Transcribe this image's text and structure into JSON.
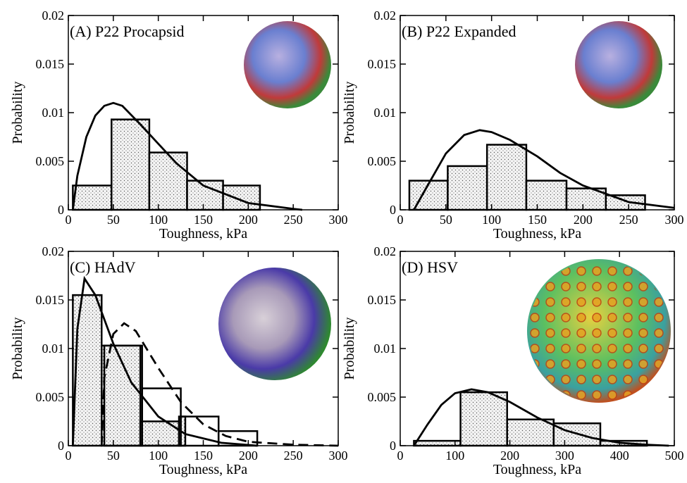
{
  "chart_data": [
    {
      "type": "histogram",
      "title": "(A) P22 Procapsid",
      "xlabel": "Toughness, kPa",
      "ylabel": "Probability",
      "xlim": [
        0,
        300
      ],
      "ylim": [
        0,
        0.02
      ],
      "xticks": [
        0,
        50,
        100,
        150,
        200,
        250,
        300
      ],
      "yticks": [
        0,
        0.005,
        0.01,
        0.015,
        0.02
      ],
      "histograms": [
        {
          "fill": "dotted",
          "bins": [
            5,
            48,
            90,
            132,
            172,
            213
          ],
          "counts": [
            0.0025,
            0.0093,
            0.0059,
            0.003,
            0.0025
          ]
        }
      ],
      "curves": [
        {
          "dashed": false,
          "x": [
            5,
            10,
            20,
            30,
            40,
            50,
            60,
            80,
            100,
            120,
            150,
            200,
            250,
            260
          ],
          "values": [
            0,
            0.0035,
            0.0075,
            0.0097,
            0.0107,
            0.011,
            0.0107,
            0.0088,
            0.0068,
            0.0048,
            0.0025,
            0.0007,
            0.0001,
            0
          ]
        }
      ]
    },
    {
      "type": "histogram",
      "title": "(B) P22 Expanded",
      "xlabel": "Toughness, kPa",
      "ylabel": "Probability",
      "xlim": [
        0,
        300
      ],
      "ylim": [
        0,
        0.02
      ],
      "xticks": [
        0,
        50,
        100,
        150,
        200,
        250,
        300
      ],
      "yticks": [
        0,
        0.005,
        0.01,
        0.015,
        0.02
      ],
      "histograms": [
        {
          "fill": "dotted",
          "bins": [
            10,
            52,
            95,
            138,
            182,
            225,
            268
          ],
          "counts": [
            0.003,
            0.0045,
            0.0067,
            0.003,
            0.0022,
            0.0015
          ]
        }
      ],
      "curves": [
        {
          "dashed": false,
          "x": [
            15,
            30,
            50,
            70,
            87,
            100,
            120,
            150,
            175,
            200,
            250,
            300
          ],
          "values": [
            0,
            0.0025,
            0.0058,
            0.0077,
            0.0082,
            0.008,
            0.0072,
            0.0055,
            0.0038,
            0.0025,
            0.0008,
            0.0002
          ]
        }
      ]
    },
    {
      "type": "histogram",
      "title": "(C) HAdV",
      "xlabel": "Toughness, kPa",
      "ylabel": "Probability",
      "xlim": [
        0,
        300
      ],
      "ylim": [
        0,
        0.02
      ],
      "xticks": [
        0,
        50,
        100,
        150,
        200,
        250,
        300
      ],
      "yticks": [
        0,
        0.005,
        0.01,
        0.015,
        0.02
      ],
      "histograms": [
        {
          "fill": "dotted",
          "bins": [
            5,
            37,
            80,
            123,
            130
          ],
          "counts": [
            0.0155,
            0.0103,
            0.0025,
            0.003
          ]
        },
        {
          "fill": "none",
          "bins": [
            40,
            82,
            125,
            167,
            210
          ],
          "counts": [
            0.0103,
            0.0059,
            0.003,
            0.0015
          ]
        }
      ],
      "curves": [
        {
          "dashed": false,
          "x": [
            5,
            10,
            18,
            30,
            50,
            70,
            100,
            130,
            170,
            210
          ],
          "values": [
            0,
            0.012,
            0.0172,
            0.0155,
            0.0105,
            0.0065,
            0.003,
            0.0012,
            0.0003,
            0
          ]
        },
        {
          "dashed": true,
          "x": [
            37,
            40,
            50,
            62,
            75,
            100,
            125,
            150,
            175,
            200,
            250,
            300
          ],
          "values": [
            0,
            0.007,
            0.0115,
            0.0126,
            0.0118,
            0.008,
            0.0045,
            0.0022,
            0.001,
            0.0004,
            0.0001,
            0
          ]
        }
      ]
    },
    {
      "type": "histogram",
      "title": "(D) HSV",
      "xlabel": "Toughness, kPa",
      "ylabel": "Probability",
      "xlim": [
        0,
        500
      ],
      "ylim": [
        0,
        0.02
      ],
      "xticks": [
        0,
        100,
        200,
        300,
        400,
        500
      ],
      "yticks": [
        0,
        0.005,
        0.01,
        0.015,
        0.02
      ],
      "histograms": [
        {
          "fill": "dotted",
          "bins": [
            25,
            110,
            195,
            280,
            365,
            450
          ],
          "counts": [
            0.0005,
            0.0055,
            0.0027,
            0.0023,
            0.0005
          ]
        }
      ],
      "curves": [
        {
          "dashed": false,
          "x": [
            25,
            50,
            75,
            100,
            130,
            160,
            200,
            250,
            300,
            350,
            400,
            450,
            490
          ],
          "values": [
            0,
            0.0022,
            0.0042,
            0.0054,
            0.0058,
            0.0055,
            0.0045,
            0.0029,
            0.0016,
            0.0008,
            0.0003,
            0.0001,
            0
          ]
        }
      ]
    }
  ]
}
